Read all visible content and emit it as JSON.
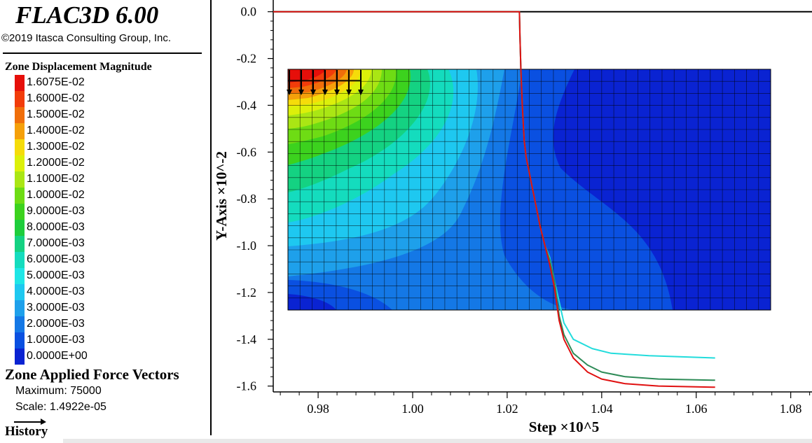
{
  "app": {
    "title": "FLAC3D 6.00",
    "copyright": "©2019 Itasca Consulting Group, Inc."
  },
  "legend": {
    "title": "Zone Displacement Magnitude",
    "items": [
      {
        "label": "1.6075E-02",
        "color": "#e60f0a"
      },
      {
        "label": "1.6000E-02",
        "color": "#f23c0a"
      },
      {
        "label": "1.5000E-02",
        "color": "#f06e0a"
      },
      {
        "label": "1.4000E-02",
        "color": "#f5a00a"
      },
      {
        "label": "1.3000E-02",
        "color": "#f5dc0a"
      },
      {
        "label": "1.2000E-02",
        "color": "#dcf00a"
      },
      {
        "label": "1.1000E-02",
        "color": "#aae614"
      },
      {
        "label": "1.0000E-02",
        "color": "#6edc14"
      },
      {
        "label": "9.0000E-03",
        "color": "#3cd21e"
      },
      {
        "label": "8.0000E-03",
        "color": "#1ecd3c"
      },
      {
        "label": "7.0000E-03",
        "color": "#14d282"
      },
      {
        "label": "6.0000E-03",
        "color": "#14dcbe"
      },
      {
        "label": "5.0000E-03",
        "color": "#1ee6e6"
      },
      {
        "label": "4.0000E-03",
        "color": "#1ec8f0"
      },
      {
        "label": "3.0000E-03",
        "color": "#1ea0eb"
      },
      {
        "label": "2.0000E-03",
        "color": "#1478e6"
      },
      {
        "label": "1.0000E-03",
        "color": "#0a50e1"
      },
      {
        "label": "0.0000E+00",
        "color": "#0a23d2"
      }
    ]
  },
  "vectors": {
    "title": "Zone Applied Force Vectors",
    "maximum": "Maximum: 75000",
    "scale": "Scale: 1.4922e-05"
  },
  "history": {
    "title": "History"
  },
  "chart_data": {
    "type": "line",
    "xlabel": "Step ×10^5",
    "ylabel": "Y-Axis ×10^-2",
    "xlim": [
      0.9705,
      1.0845
    ],
    "ylim": [
      -1.625,
      0.05
    ],
    "xticks": [
      0.98,
      1.0,
      1.02,
      1.04,
      1.06,
      1.08
    ],
    "xtick_labels": [
      "0.98",
      "1.00",
      "1.02",
      "1.04",
      "1.06",
      "1.08"
    ],
    "yticks": [
      0.0,
      -0.2,
      -0.4,
      -0.6,
      -0.8,
      -1.0,
      -1.2,
      -1.4,
      -1.6
    ],
    "ytick_labels": [
      "0.0",
      "-0.2",
      "-0.4",
      "-0.6",
      "-0.8",
      "-1.0",
      "-1.2",
      "-1.4",
      "-1.6"
    ],
    "series": [
      {
        "name": "history-black",
        "color": "#000000",
        "x": [
          0.9705,
          1.0845
        ],
        "y": [
          0.0,
          0.0
        ]
      },
      {
        "name": "history-cyan",
        "color": "#22dcdc",
        "x": [
          0.9705,
          1.0226,
          1.0227,
          1.0229,
          1.0232,
          1.0236,
          1.024,
          1.025,
          1.026,
          1.027,
          1.028,
          1.029,
          1.03,
          1.032,
          1.034,
          1.038,
          1.042,
          1.05,
          1.064
        ],
        "y": [
          0.0,
          0.0,
          -0.1,
          -0.25,
          -0.4,
          -0.55,
          -0.62,
          -0.72,
          -0.82,
          -0.92,
          -1.0,
          -1.05,
          -1.15,
          -1.33,
          -1.4,
          -1.44,
          -1.46,
          -1.47,
          -1.48
        ]
      },
      {
        "name": "history-green",
        "color": "#2e8b57",
        "x": [
          0.9705,
          1.0226,
          1.0227,
          1.0229,
          1.0232,
          1.0236,
          1.024,
          1.025,
          1.026,
          1.027,
          1.028,
          1.029,
          1.03,
          1.031,
          1.032,
          1.034,
          1.037,
          1.04,
          1.045,
          1.052,
          1.064
        ],
        "y": [
          0.0,
          0.0,
          -0.1,
          -0.25,
          -0.4,
          -0.55,
          -0.62,
          -0.72,
          -0.82,
          -0.92,
          -1.0,
          -1.06,
          -1.15,
          -1.3,
          -1.38,
          -1.46,
          -1.51,
          -1.54,
          -1.56,
          -1.57,
          -1.575
        ]
      },
      {
        "name": "history-red",
        "color": "#e01010",
        "x": [
          0.9705,
          1.0226,
          1.0227,
          1.0229,
          1.0232,
          1.0236,
          1.024,
          1.025,
          1.026,
          1.027,
          1.028,
          1.029,
          1.03,
          1.031,
          1.032,
          1.034,
          1.037,
          1.04,
          1.045,
          1.052,
          1.064
        ],
        "y": [
          0.0,
          0.0,
          -0.1,
          -0.25,
          -0.4,
          -0.55,
          -0.62,
          -0.72,
          -0.82,
          -0.92,
          -1.0,
          -1.08,
          -1.18,
          -1.32,
          -1.4,
          -1.48,
          -1.54,
          -1.57,
          -1.59,
          -1.6,
          -1.605
        ]
      }
    ]
  }
}
